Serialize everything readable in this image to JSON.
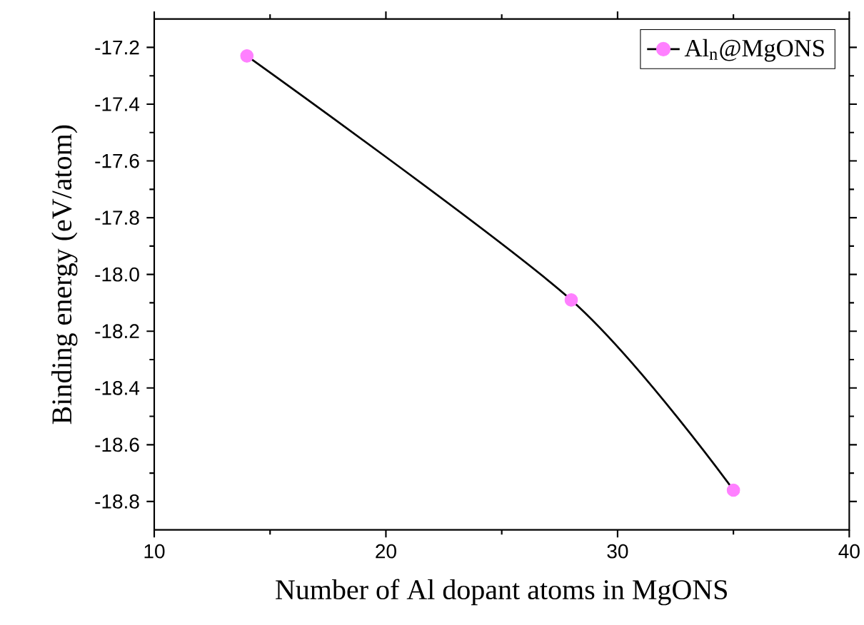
{
  "chart_data": {
    "type": "line",
    "xlabel": "Number of Al dopant atoms in MgONS",
    "ylabel": "Binding energy (eV/atom)",
    "x": [
      14,
      28,
      35
    ],
    "series": [
      {
        "name": "Al$_{n}$@MgONS",
        "color": "#000000",
        "colors": [
          "#ff80ff",
          "#ff80ff",
          "#ff80ff"
        ],
        "values": [
          -17.23,
          -18.09,
          -18.76
        ]
      }
    ],
    "xlim": [
      10,
      40
    ],
    "ylim": [
      -18.9,
      -17.1
    ],
    "xticks": [
      10,
      20,
      30,
      40
    ],
    "yticks": [
      {
        "value": -17.2,
        "label": "-17.2"
      },
      {
        "value": -17.4,
        "label": "-17.4"
      },
      {
        "value": -17.6,
        "label": "-17.6"
      },
      {
        "value": -17.8,
        "label": "-17.8"
      },
      {
        "value": -18.0,
        "label": "-18.0"
      },
      {
        "value": -18.2,
        "label": "-18.2"
      },
      {
        "value": -18.4,
        "label": "-18.4"
      },
      {
        "value": -18.6,
        "label": "-18.6"
      },
      {
        "value": -18.8,
        "label": "-18.8"
      }
    ],
    "grid": false,
    "legend": "top right",
    "marker": "circle",
    "line_style": "solid"
  }
}
